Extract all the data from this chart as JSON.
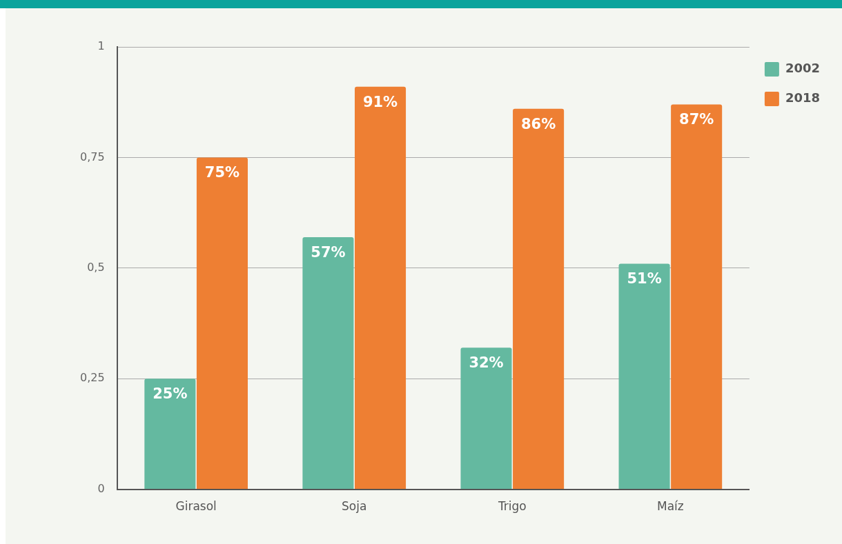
{
  "chart_data": {
    "type": "bar",
    "categories": [
      "Girasol",
      "Soja",
      "Trigo",
      "Maíz"
    ],
    "series": [
      {
        "name": "2002",
        "color": "#64b9a0",
        "values": [
          0.25,
          0.57,
          0.32,
          0.51
        ],
        "value_labels": [
          "25%",
          "57%",
          "32%",
          "51%"
        ]
      },
      {
        "name": "2018",
        "color": "#ee7f33",
        "values": [
          0.75,
          0.91,
          0.86,
          0.87
        ],
        "value_labels": [
          "75%",
          "91%",
          "86%",
          "87%"
        ]
      }
    ],
    "ylim": [
      0,
      1
    ],
    "yticks": [
      0,
      {
        "value": 0.25,
        "label": "0,25"
      },
      {
        "value": 0.5,
        "label": "0,5"
      },
      {
        "value": 0.75,
        "label": "0,75"
      },
      1
    ],
    "grid": "y",
    "legend": "top right"
  }
}
